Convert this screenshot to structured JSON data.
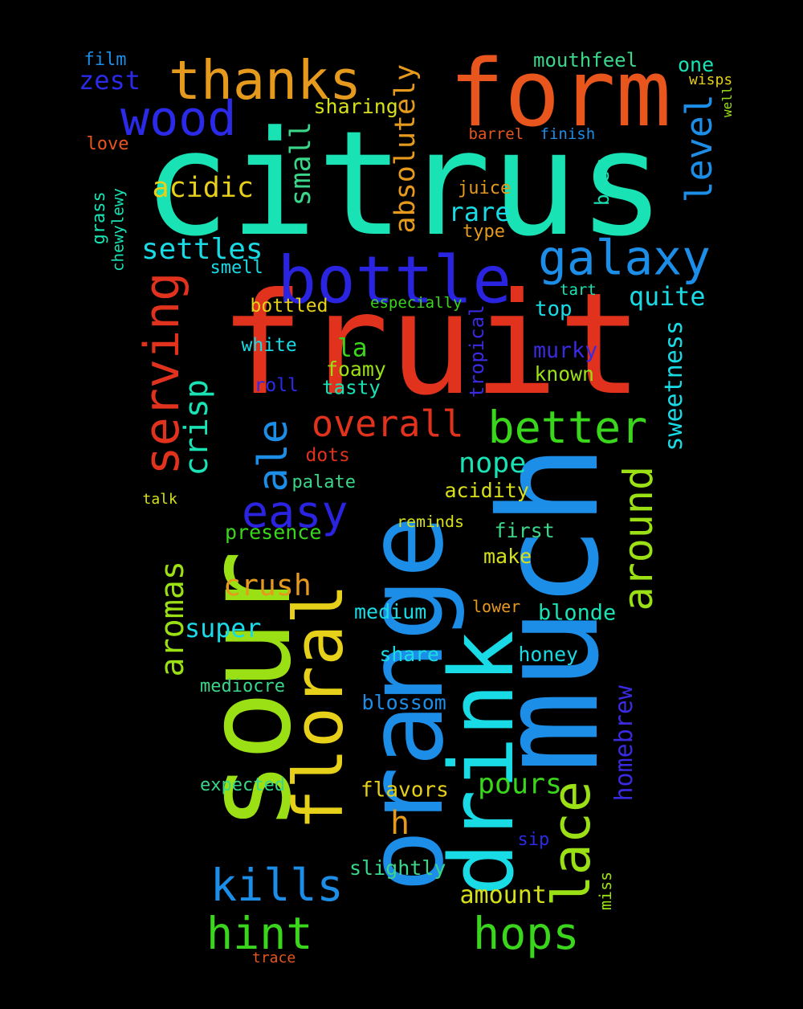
{
  "words": [
    {
      "text": "fruit",
      "color": "#e0321d",
      "orientation": "horizontal"
    },
    {
      "text": "citrus",
      "color": "#19e2b4",
      "orientation": "horizontal"
    },
    {
      "text": "orange",
      "color": "#1d8ee8",
      "orientation": "vertical"
    },
    {
      "text": "sour",
      "color": "#9be015",
      "orientation": "vertical"
    },
    {
      "text": "much",
      "color": "#1d8ee8",
      "orientation": "vertical"
    },
    {
      "text": "drink",
      "color": "#19dbe6",
      "orientation": "vertical"
    },
    {
      "text": "floral",
      "color": "#e6d019",
      "orientation": "vertical"
    },
    {
      "text": "form",
      "color": "#e8551d",
      "orientation": "horizontal"
    },
    {
      "text": "bottle",
      "color": "#2a23e0",
      "orientation": "horizontal"
    },
    {
      "text": "thanks",
      "color": "#e59a1d",
      "orientation": "horizontal"
    },
    {
      "text": "ale",
      "color": "#1d8ee8",
      "orientation": "vertical"
    },
    {
      "text": "galaxy",
      "color": "#1d8ee8",
      "orientation": "horizontal"
    },
    {
      "text": "wood",
      "color": "#2a2ae8",
      "orientation": "horizontal"
    },
    {
      "text": "serving",
      "color": "#e0321d",
      "orientation": "vertical"
    },
    {
      "text": "better",
      "color": "#3ad61c",
      "orientation": "horizontal"
    },
    {
      "text": "overall",
      "color": "#e0321d",
      "orientation": "horizontal"
    },
    {
      "text": "easy",
      "color": "#2a23e0",
      "orientation": "horizontal"
    },
    {
      "text": "hops",
      "color": "#3ad61c",
      "orientation": "horizontal"
    },
    {
      "text": "hint",
      "color": "#3ad61c",
      "orientation": "horizontal"
    },
    {
      "text": "kills",
      "color": "#1d8ee8",
      "orientation": "horizontal"
    },
    {
      "text": "lace",
      "color": "#9be015",
      "orientation": "vertical"
    },
    {
      "text": "around",
      "color": "#9be015",
      "orientation": "vertical"
    },
    {
      "text": "aromas",
      "color": "#9be015",
      "orientation": "vertical"
    },
    {
      "text": "level",
      "color": "#1d8ee8",
      "orientation": "vertical"
    },
    {
      "text": "acidic",
      "color": "#e6d019",
      "orientation": "horizontal"
    },
    {
      "text": "settles",
      "color": "#19dbe6",
      "orientation": "horizontal"
    },
    {
      "text": "small",
      "color": "#3ad68a",
      "orientation": "vertical"
    },
    {
      "text": "absolutely",
      "color": "#e59a1d",
      "orientation": "vertical"
    },
    {
      "text": "crisp",
      "color": "#19e2b4",
      "orientation": "vertical"
    },
    {
      "text": "zest",
      "color": "#2a2ae8",
      "orientation": "horizontal"
    },
    {
      "text": "crush",
      "color": "#e59a1d",
      "orientation": "horizontal"
    },
    {
      "text": "pours",
      "color": "#3ad61c",
      "orientation": "horizontal"
    },
    {
      "text": "nope",
      "color": "#19e2b4",
      "orientation": "horizontal"
    },
    {
      "text": "rare",
      "color": "#19dbe6",
      "orientation": "horizontal"
    },
    {
      "text": "h",
      "color": "#e59a1d",
      "orientation": "horizontal"
    },
    {
      "text": "sweetness",
      "color": "#19dbe6",
      "orientation": "vertical"
    },
    {
      "text": "quite",
      "color": "#19dbe6",
      "orientation": "horizontal"
    },
    {
      "text": "amount",
      "color": "#d6e01a",
      "orientation": "horizontal"
    },
    {
      "text": "super",
      "color": "#19dbe6",
      "orientation": "horizontal"
    },
    {
      "text": "homebrew",
      "color": "#3a2ae0",
      "orientation": "vertical"
    },
    {
      "text": "blonde",
      "color": "#19e2b4",
      "orientation": "horizontal"
    },
    {
      "text": "la",
      "color": "#3ad61c",
      "orientation": "horizontal"
    },
    {
      "text": "mouthfeel",
      "color": "#3ad68a",
      "orientation": "horizontal"
    },
    {
      "text": "sharing",
      "color": "#d6e01a",
      "orientation": "horizontal"
    },
    {
      "text": "one",
      "color": "#19e2b4",
      "orientation": "horizontal"
    },
    {
      "text": "top",
      "color": "#19dbe6",
      "orientation": "horizontal"
    },
    {
      "text": "murky",
      "color": "#3a2ae0",
      "orientation": "horizontal"
    },
    {
      "text": "known",
      "color": "#9be015",
      "orientation": "horizontal"
    },
    {
      "text": "foamy",
      "color": "#9be015",
      "orientation": "horizontal"
    },
    {
      "text": "tasty",
      "color": "#19e2b4",
      "orientation": "horizontal"
    },
    {
      "text": "first",
      "color": "#3ad68a",
      "orientation": "horizontal"
    },
    {
      "text": "make",
      "color": "#d6e01a",
      "orientation": "horizontal"
    },
    {
      "text": "flavors",
      "color": "#e6d019",
      "orientation": "horizontal"
    },
    {
      "text": "slightly",
      "color": "#3ad68a",
      "orientation": "horizontal"
    },
    {
      "text": "presence",
      "color": "#3ad61c",
      "orientation": "horizontal"
    },
    {
      "text": "acidity",
      "color": "#d6e01a",
      "orientation": "horizontal"
    },
    {
      "text": "blossom",
      "color": "#1d8ee8",
      "orientation": "horizontal"
    },
    {
      "text": "share",
      "color": "#19dbe6",
      "orientation": "horizontal"
    },
    {
      "text": "honey",
      "color": "#19dbe6",
      "orientation": "horizontal"
    },
    {
      "text": "medium",
      "color": "#19dbe6",
      "orientation": "horizontal"
    },
    {
      "text": "mediocre",
      "color": "#3ad68a",
      "orientation": "horizontal"
    },
    {
      "text": "expected",
      "color": "#3ad68a",
      "orientation": "horizontal"
    },
    {
      "text": "bottled",
      "color": "#e6d019",
      "orientation": "horizontal"
    },
    {
      "text": "white",
      "color": "#19dbe6",
      "orientation": "horizontal"
    },
    {
      "text": "palate",
      "color": "#3ad68a",
      "orientation": "horizontal"
    },
    {
      "text": "dots",
      "color": "#e0321d",
      "orientation": "horizontal"
    },
    {
      "text": "roll",
      "color": "#2a2ae8",
      "orientation": "horizontal"
    },
    {
      "text": "juice",
      "color": "#e59a1d",
      "orientation": "horizontal"
    },
    {
      "text": "type",
      "color": "#e59a1d",
      "orientation": "horizontal"
    },
    {
      "text": "beer",
      "color": "#19e2b4",
      "orientation": "vertical"
    },
    {
      "text": "barrel",
      "color": "#e8551d",
      "orientation": "horizontal"
    },
    {
      "text": "finish",
      "color": "#1d8ee8",
      "orientation": "horizontal"
    },
    {
      "text": "film",
      "color": "#1d8ee8",
      "orientation": "horizontal"
    },
    {
      "text": "love",
      "color": "#e8551d",
      "orientation": "horizontal"
    },
    {
      "text": "grass",
      "color": "#19e2b4",
      "orientation": "vertical"
    },
    {
      "text": "chewylewy",
      "color": "#19e2b4",
      "orientation": "vertical"
    },
    {
      "text": "smell",
      "color": "#19dbe6",
      "orientation": "horizontal"
    },
    {
      "text": "tart",
      "color": "#19e2b4",
      "orientation": "horizontal"
    },
    {
      "text": "especially",
      "color": "#3ad61c",
      "orientation": "horizontal"
    },
    {
      "text": "tropical",
      "color": "#3a2ae0",
      "orientation": "vertical"
    },
    {
      "text": "reminds",
      "color": "#d6e01a",
      "orientation": "horizontal"
    },
    {
      "text": "lower",
      "color": "#e59a1d",
      "orientation": "horizontal"
    },
    {
      "text": "talk",
      "color": "#d6e01a",
      "orientation": "horizontal"
    },
    {
      "text": "sip",
      "color": "#2a2ae8",
      "orientation": "horizontal"
    },
    {
      "text": "miss",
      "color": "#9be015",
      "orientation": "vertical"
    },
    {
      "text": "trace",
      "color": "#e8551d",
      "orientation": "horizontal"
    },
    {
      "text": "wisps",
      "color": "#e6d019",
      "orientation": "horizontal"
    },
    {
      "text": "well",
      "color": "#9be015",
      "orientation": "vertical"
    }
  ]
}
